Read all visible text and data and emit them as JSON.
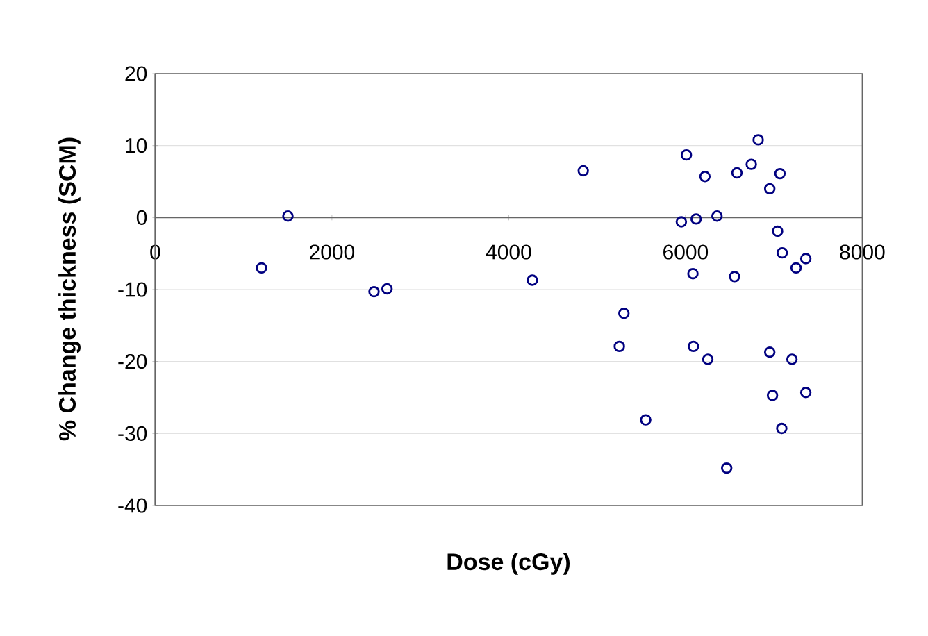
{
  "chart_data": {
    "type": "scatter",
    "xlabel": "Dose (cGy)",
    "ylabel": "% Change thickness (SCM)",
    "x": [
      1203,
      1502,
      2476,
      2623,
      4267,
      4843,
      6010,
      6220,
      6582,
      6744,
      6822,
      7069,
      6953,
      5953,
      6120,
      6356,
      7042,
      7094,
      7251,
      7361,
      6084,
      6555,
      5303,
      5251,
      6089,
      6252,
      6953,
      7204,
      6984,
      7361,
      7089,
      5550,
      6466
    ],
    "values": [
      -7.0,
      0.2,
      -10.3,
      -9.9,
      -8.7,
      6.5,
      8.7,
      5.7,
      6.2,
      7.4,
      10.8,
      6.1,
      4.0,
      -0.6,
      -0.2,
      0.2,
      -1.9,
      -4.9,
      -7.0,
      -5.7,
      -7.8,
      -8.2,
      -13.3,
      -17.9,
      -17.9,
      -19.7,
      -18.7,
      -19.7,
      -24.7,
      -24.3,
      -29.3,
      -28.1,
      -34.8
    ],
    "color": "#000080",
    "marker": "circle",
    "xlim": [
      0,
      8000
    ],
    "xticks": [
      0,
      2000,
      4000,
      6000,
      8000
    ],
    "ylim": [
      -40,
      20
    ],
    "yticks": [
      -40,
      -30,
      -20,
      -10,
      0,
      10,
      20
    ],
    "grid": "y"
  }
}
